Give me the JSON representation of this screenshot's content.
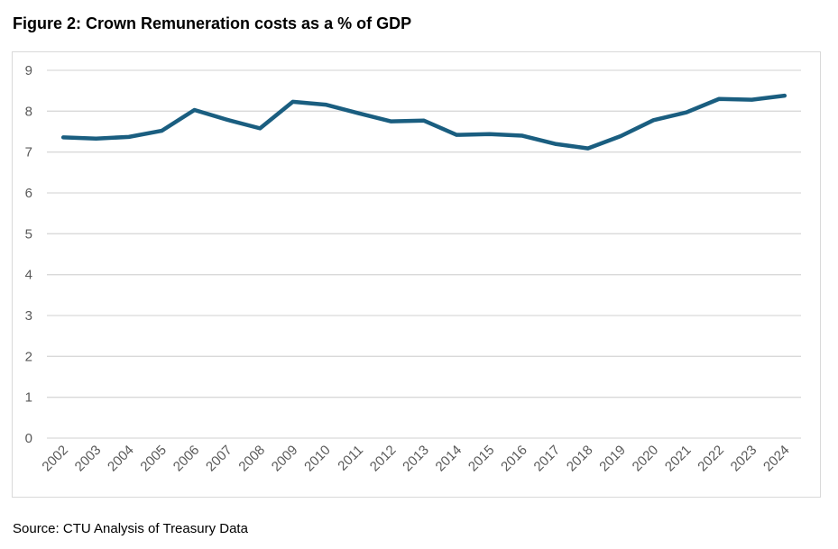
{
  "title": "Figure 2: Crown Remuneration costs as a % of GDP",
  "source": "Source: CTU Analysis of Treasury Data",
  "colors": {
    "line": "#1a5e80",
    "grid": "#d9d9d9",
    "tick": "#595959"
  },
  "chart_data": {
    "type": "line",
    "title": "Figure 2: Crown Remuneration costs as a % of GDP",
    "xlabel": "",
    "ylabel": "",
    "ylim": [
      0,
      9
    ],
    "yticks": [
      "0",
      "1",
      "2",
      "3",
      "4",
      "5",
      "6",
      "7",
      "8",
      "9"
    ],
    "grid": true,
    "legend": "none",
    "categories": [
      "2002",
      "2003",
      "2004",
      "2005",
      "2006",
      "2007",
      "2008",
      "2009",
      "2010",
      "2011",
      "2012",
      "2013",
      "2014",
      "2015",
      "2016",
      "2017",
      "2018",
      "2019",
      "2020",
      "2021",
      "2022",
      "2023",
      "2024"
    ],
    "series": [
      {
        "name": "Crown Remuneration costs % of GDP",
        "values": [
          7.36,
          7.33,
          7.37,
          7.52,
          8.03,
          7.79,
          7.58,
          8.23,
          8.16,
          7.95,
          7.75,
          7.77,
          7.42,
          7.44,
          7.4,
          7.2,
          7.09,
          7.39,
          7.78,
          7.97,
          8.3,
          8.28,
          8.38
        ]
      }
    ]
  }
}
